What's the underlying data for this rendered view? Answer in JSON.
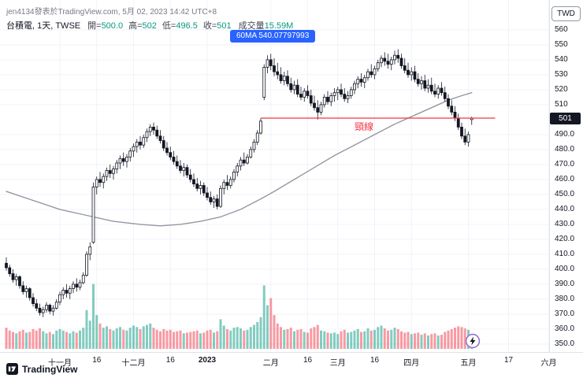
{
  "attribution": {
    "publisher_line": "jen4134發表於TradingView.com, 5月 02, 2023 14:42 UTC+8",
    "brand": "TradingView"
  },
  "legend": {
    "symbol_line": "台積電, 1天, TWSE",
    "ohlc": [
      {
        "label": "開=",
        "value": "500.0"
      },
      {
        "label": "高=",
        "value": "502"
      },
      {
        "label": "低=",
        "value": "496.5"
      },
      {
        "label": "收=",
        "value": "501"
      }
    ],
    "volume_label": "成交量",
    "volume_value": "15.59M"
  },
  "tooltip": {
    "text": "60MA 540.07797993",
    "color": "#2962ff"
  },
  "annotations": {
    "neckline": {
      "label": "頸線",
      "price": 501,
      "color": "#f23645",
      "from_index": 76,
      "to_index": 146,
      "label_index": 104
    }
  },
  "price_axis": {
    "currency": "TWD",
    "last_price": {
      "text": "501",
      "price": 501,
      "bg": "#131722"
    },
    "labels": [
      {
        "text": "560",
        "price": 560
      },
      {
        "text": "550",
        "price": 550
      },
      {
        "text": "540",
        "price": 540
      },
      {
        "text": "530",
        "price": 530
      },
      {
        "text": "520",
        "price": 520
      },
      {
        "text": "510",
        "price": 510
      },
      {
        "text": "490.0",
        "price": 490
      },
      {
        "text": "480.0",
        "price": 480
      },
      {
        "text": "470.0",
        "price": 470
      },
      {
        "text": "460.0",
        "price": 460
      },
      {
        "text": "450.0",
        "price": 450
      },
      {
        "text": "440.0",
        "price": 440
      },
      {
        "text": "430.0",
        "price": 430
      },
      {
        "text": "420.0",
        "price": 420
      },
      {
        "text": "410.0",
        "price": 410
      },
      {
        "text": "400.0",
        "price": 400
      },
      {
        "text": "390.0",
        "price": 390
      },
      {
        "text": "380.0",
        "price": 380
      },
      {
        "text": "370.0",
        "price": 370
      },
      {
        "text": "360.0",
        "price": 360
      },
      {
        "text": "350.0",
        "price": 350
      }
    ]
  },
  "time_axis": {
    "labels": [
      {
        "label": "十一月",
        "index": 16
      },
      {
        "label": "16",
        "index": 27
      },
      {
        "label": "十二月",
        "index": 38
      },
      {
        "label": "16",
        "index": 49
      },
      {
        "label": "2023",
        "index": 60,
        "strong": true
      },
      {
        "label": "二月",
        "index": 79
      },
      {
        "label": "16",
        "index": 90
      },
      {
        "label": "三月",
        "index": 99
      },
      {
        "label": "16",
        "index": 110
      },
      {
        "label": "四月",
        "index": 121
      },
      {
        "label": "五月",
        "index": 138
      },
      {
        "label": "17",
        "index": 150
      },
      {
        "label": "六月",
        "index": 162
      }
    ]
  },
  "chart_data": {
    "type": "candlestick",
    "symbol": "台積電",
    "interval": "1天",
    "exchange": "TWSE",
    "price_range": [
      350,
      560
    ],
    "volume_unit": "M",
    "volume_scale_max": 95,
    "grid": true,
    "colors": {
      "up": "#ffffff",
      "down": "#131722",
      "border": "#131722",
      "vol_up": "rgba(8,153,129,0.5)",
      "vol_down": "rgba(242,54,69,0.5)",
      "ma": "#9598a1",
      "grid": "#f0f3fa",
      "neckline": "#f23645"
    },
    "ma60": {
      "period": 60,
      "value_shown": "540.07797993",
      "points": [
        [
          0,
          452
        ],
        [
          8,
          446
        ],
        [
          16,
          440
        ],
        [
          24,
          436
        ],
        [
          32,
          432
        ],
        [
          40,
          430
        ],
        [
          46,
          429
        ],
        [
          52,
          430
        ],
        [
          58,
          432
        ],
        [
          64,
          435
        ],
        [
          70,
          440
        ],
        [
          76,
          447
        ],
        [
          80,
          452
        ],
        [
          86,
          460
        ],
        [
          92,
          468
        ],
        [
          98,
          476
        ],
        [
          104,
          483
        ],
        [
          110,
          490
        ],
        [
          116,
          497
        ],
        [
          122,
          503
        ],
        [
          128,
          509
        ],
        [
          132,
          513
        ],
        [
          136,
          516
        ],
        [
          139,
          518
        ]
      ]
    },
    "neckline_price": 501,
    "last_bar": {
      "open": 500.0,
      "high": 502,
      "low": 496.5,
      "close": 501,
      "volume": "15.59M"
    },
    "ohlcv": [
      [
        404,
        408,
        399,
        401,
        30
      ],
      [
        401,
        403,
        395,
        397,
        26
      ],
      [
        397,
        400,
        391,
        393,
        24
      ],
      [
        393,
        397,
        389,
        395,
        22
      ],
      [
        395,
        396,
        387,
        389,
        25
      ],
      [
        389,
        392,
        383,
        385,
        27
      ],
      [
        385,
        389,
        381,
        387,
        23
      ],
      [
        387,
        388,
        379,
        381,
        24
      ],
      [
        381,
        384,
        375,
        377,
        28
      ],
      [
        377,
        380,
        372,
        374,
        26
      ],
      [
        374,
        377,
        369,
        371,
        29
      ],
      [
        371,
        375,
        368,
        373,
        25
      ],
      [
        373,
        378,
        371,
        376,
        22
      ],
      [
        376,
        377,
        370,
        372,
        24
      ],
      [
        372,
        376,
        369,
        374,
        21
      ],
      [
        374,
        380,
        373,
        378,
        26
      ],
      [
        378,
        385,
        376,
        383,
        28
      ],
      [
        383,
        388,
        380,
        386,
        26
      ],
      [
        386,
        390,
        381,
        384,
        24
      ],
      [
        384,
        389,
        380,
        387,
        22
      ],
      [
        387,
        392,
        384,
        390,
        25
      ],
      [
        390,
        394,
        385,
        388,
        23
      ],
      [
        388,
        393,
        386,
        391,
        26
      ],
      [
        391,
        398,
        390,
        396,
        30
      ],
      [
        396,
        412,
        395,
        410,
        55
      ],
      [
        410,
        418,
        406,
        415,
        40
      ],
      [
        418,
        458,
        417,
        455,
        92
      ],
      [
        455,
        462,
        450,
        460,
        48
      ],
      [
        460,
        465,
        455,
        458,
        36
      ],
      [
        458,
        464,
        454,
        462,
        30
      ],
      [
        462,
        468,
        459,
        466,
        32
      ],
      [
        466,
        470,
        461,
        464,
        28
      ],
      [
        464,
        469,
        460,
        467,
        26
      ],
      [
        467,
        473,
        464,
        471,
        29
      ],
      [
        471,
        476,
        467,
        474,
        31
      ],
      [
        474,
        478,
        469,
        472,
        27
      ],
      [
        472,
        477,
        468,
        475,
        26
      ],
      [
        475,
        481,
        472,
        479,
        30
      ],
      [
        479,
        484,
        475,
        482,
        33
      ],
      [
        482,
        487,
        478,
        485,
        31
      ],
      [
        485,
        489,
        480,
        483,
        28
      ],
      [
        483,
        490,
        481,
        488,
        32
      ],
      [
        488,
        494,
        485,
        492,
        34
      ],
      [
        492,
        497,
        489,
        495,
        36
      ],
      [
        495,
        498,
        490,
        493,
        30
      ],
      [
        493,
        496,
        487,
        489,
        27
      ],
      [
        489,
        493,
        484,
        486,
        25
      ],
      [
        486,
        489,
        479,
        481,
        28
      ],
      [
        481,
        485,
        476,
        478,
        26
      ],
      [
        478,
        482,
        473,
        475,
        27
      ],
      [
        475,
        479,
        470,
        472,
        24
      ],
      [
        472,
        476,
        467,
        469,
        25
      ],
      [
        469,
        473,
        464,
        466,
        26
      ],
      [
        466,
        471,
        462,
        468,
        22
      ],
      [
        468,
        470,
        461,
        463,
        23
      ],
      [
        463,
        467,
        458,
        460,
        24
      ],
      [
        460,
        464,
        455,
        457,
        25
      ],
      [
        457,
        461,
        452,
        454,
        26
      ],
      [
        454,
        459,
        450,
        456,
        22
      ],
      [
        456,
        458,
        449,
        451,
        23
      ],
      [
        451,
        455,
        446,
        448,
        26
      ],
      [
        448,
        452,
        443,
        445,
        27
      ],
      [
        445,
        449,
        441,
        447,
        23
      ],
      [
        447,
        450,
        440,
        442,
        25
      ],
      [
        442,
        456,
        441,
        454,
        42
      ],
      [
        454,
        460,
        450,
        458,
        33
      ],
      [
        458,
        463,
        453,
        456,
        28
      ],
      [
        456,
        462,
        454,
        460,
        26
      ],
      [
        460,
        467,
        458,
        465,
        30
      ],
      [
        465,
        471,
        462,
        469,
        31
      ],
      [
        469,
        475,
        466,
        473,
        29
      ],
      [
        473,
        478,
        469,
        471,
        26
      ],
      [
        471,
        477,
        470,
        475,
        27
      ],
      [
        475,
        482,
        474,
        480,
        31
      ],
      [
        480,
        487,
        478,
        485,
        34
      ],
      [
        485,
        493,
        483,
        491,
        38
      ],
      [
        491,
        501,
        490,
        499,
        45
      ],
      [
        515,
        537,
        513,
        535,
        90
      ],
      [
        535,
        543,
        531,
        540,
        62
      ],
      [
        540,
        544,
        533,
        536,
        72
      ],
      [
        536,
        541,
        529,
        532,
        48
      ],
      [
        532,
        538,
        527,
        530,
        36
      ],
      [
        530,
        535,
        524,
        526,
        31
      ],
      [
        526,
        532,
        523,
        529,
        27
      ],
      [
        529,
        533,
        522,
        524,
        28
      ],
      [
        524,
        528,
        518,
        520,
        30
      ],
      [
        520,
        526,
        517,
        523,
        25
      ],
      [
        523,
        527,
        515,
        517,
        27
      ],
      [
        517,
        522,
        513,
        515,
        28
      ],
      [
        515,
        521,
        512,
        519,
        24
      ],
      [
        519,
        523,
        514,
        516,
        23
      ],
      [
        516,
        520,
        509,
        511,
        29
      ],
      [
        511,
        516,
        506,
        508,
        31
      ],
      [
        508,
        513,
        500,
        505,
        34
      ],
      [
        505,
        512,
        503,
        510,
        26
      ],
      [
        510,
        517,
        508,
        515,
        25
      ],
      [
        515,
        519,
        510,
        512,
        23
      ],
      [
        512,
        518,
        509,
        516,
        22
      ],
      [
        516,
        521,
        512,
        518,
        23
      ],
      [
        518,
        522,
        513,
        520,
        21
      ],
      [
        520,
        524,
        515,
        517,
        25
      ],
      [
        517,
        521,
        512,
        514,
        27
      ],
      [
        514,
        519,
        511,
        516,
        23
      ],
      [
        516,
        522,
        514,
        520,
        24
      ],
      [
        520,
        526,
        517,
        524,
        26
      ],
      [
        524,
        529,
        521,
        527,
        28
      ],
      [
        527,
        531,
        522,
        525,
        24
      ],
      [
        525,
        530,
        521,
        528,
        25
      ],
      [
        528,
        534,
        526,
        532,
        29
      ],
      [
        532,
        537,
        528,
        530,
        26
      ],
      [
        530,
        536,
        527,
        534,
        27
      ],
      [
        534,
        540,
        532,
        538,
        31
      ],
      [
        538,
        543,
        535,
        541,
        33
      ],
      [
        541,
        545,
        536,
        539,
        29
      ],
      [
        539,
        544,
        534,
        537,
        26
      ],
      [
        537,
        542,
        533,
        540,
        27
      ],
      [
        540,
        546,
        537,
        543,
        30
      ],
      [
        543,
        547,
        538,
        541,
        28
      ],
      [
        541,
        544,
        534,
        536,
        25
      ],
      [
        536,
        541,
        531,
        533,
        23
      ],
      [
        533,
        538,
        528,
        530,
        24
      ],
      [
        530,
        535,
        526,
        532,
        21
      ],
      [
        532,
        536,
        525,
        527,
        22
      ],
      [
        527,
        531,
        522,
        524,
        23
      ],
      [
        524,
        529,
        520,
        526,
        20
      ],
      [
        526,
        530,
        519,
        521,
        22
      ],
      [
        521,
        527,
        518,
        523,
        19
      ],
      [
        523,
        528,
        517,
        519,
        21
      ],
      [
        519,
        524,
        515,
        517,
        22
      ],
      [
        517,
        523,
        514,
        521,
        19
      ],
      [
        521,
        525,
        516,
        518,
        20
      ],
      [
        518,
        522,
        512,
        514,
        24
      ],
      [
        514,
        517,
        507,
        509,
        26
      ],
      [
        509,
        513,
        503,
        505,
        28
      ],
      [
        505,
        509,
        499,
        501,
        30
      ],
      [
        501,
        504,
        493,
        495,
        32
      ],
      [
        495,
        498,
        487,
        489,
        31
      ],
      [
        489,
        494,
        483,
        485,
        29
      ],
      [
        485,
        492,
        482,
        490,
        27
      ],
      [
        500,
        502,
        496.5,
        501,
        15.59
      ]
    ]
  }
}
